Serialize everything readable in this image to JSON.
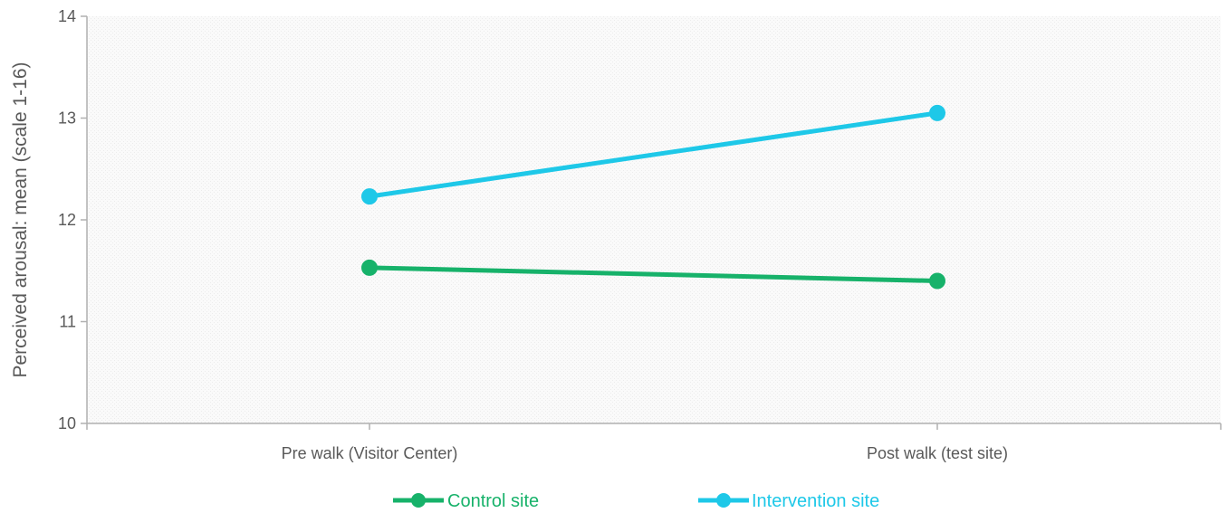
{
  "chart_data": {
    "type": "line",
    "title": "",
    "xlabel": "",
    "ylabel": "Perceived arousal: mean  (scale 1-16)",
    "categories": [
      "Pre walk (Visitor Center)",
      "Post walk (test site)"
    ],
    "ylim": [
      10,
      14
    ],
    "yticks": [
      "10",
      "11",
      "12",
      "13",
      "14"
    ],
    "grid": false,
    "legend_position": "bottom",
    "series": [
      {
        "name": "Control site",
        "color": "#17b26a",
        "values": [
          11.53,
          11.4
        ]
      },
      {
        "name": "Intervention site",
        "color": "#1ec8e8",
        "values": [
          12.23,
          13.05
        ]
      }
    ]
  }
}
